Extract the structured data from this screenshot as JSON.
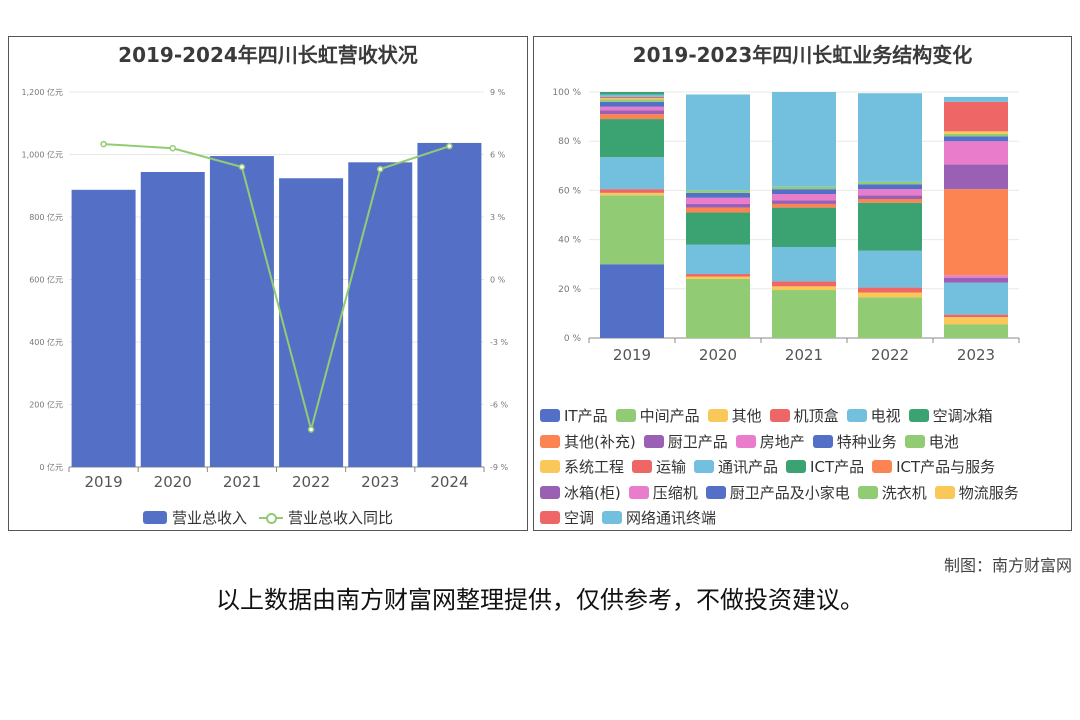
{
  "credit": "制图：南方财富网",
  "disclaimer": "以上数据由南方财富网整理提供，仅供参考，不做投资建议。",
  "chart_data": [
    {
      "type": "bar",
      "title": "2019-2024年四川长虹营收状况",
      "categories": [
        "2019",
        "2020",
        "2021",
        "2022",
        "2023",
        "2024"
      ],
      "series": [
        {
          "name": "营业总收入",
          "type": "bar",
          "axis": "left",
          "values": [
            887,
            944,
            995,
            924,
            975,
            1037
          ],
          "color": "#5470c6"
        },
        {
          "name": "营业总收入同比",
          "type": "line",
          "axis": "right",
          "values": [
            6.5,
            6.3,
            5.4,
            -7.2,
            5.3,
            6.4
          ],
          "color": "#91cc75"
        }
      ],
      "yleft": {
        "ylim": [
          0,
          1200
        ],
        "ticks": [
          "0 亿元",
          "200 亿元",
          "400 亿元",
          "600 亿元",
          "800 亿元",
          "1,000 亿元",
          "1,200 亿元"
        ]
      },
      "yright": {
        "ylim": [
          -9,
          9
        ],
        "ticks": [
          "-9 %",
          "-6 %",
          "-3 %",
          "0 %",
          "3 %",
          "6 %",
          "9 %"
        ]
      },
      "grid": true,
      "legend": "bottom"
    },
    {
      "type": "bar",
      "stacked": true,
      "title": "2019-2023年四川长虹业务结构变化",
      "categories": [
        "2019",
        "2020",
        "2021",
        "2022",
        "2023"
      ],
      "ylim": [
        0,
        100
      ],
      "yticks": [
        "0 %",
        "20 %",
        "40 %",
        "60 %",
        "80 %",
        "100 %"
      ],
      "legend": "bottom",
      "series": [
        {
          "name": "IT产品",
          "color": "#5470c6",
          "values": [
            30,
            0,
            0,
            0,
            0
          ]
        },
        {
          "name": "中间产品",
          "color": "#91cc75",
          "values": [
            28,
            0,
            0,
            0,
            0
          ]
        },
        {
          "name": "其他",
          "color": "#fac858",
          "values": [
            1,
            0,
            0,
            0,
            0
          ]
        },
        {
          "name": "机顶盒",
          "color": "#ee6666",
          "values": [
            1.5,
            0,
            0,
            0,
            0
          ]
        },
        {
          "name": "电视",
          "color": "#73c0de",
          "values": [
            13,
            0,
            0,
            0,
            0
          ]
        },
        {
          "name": "空调冰箱",
          "color": "#3ba272",
          "values": [
            15.5,
            0,
            0,
            0,
            0
          ]
        },
        {
          "name": "其他(补充)",
          "color": "#fc8452",
          "values": [
            2,
            0,
            0,
            0,
            0
          ]
        },
        {
          "name": "厨卫产品",
          "color": "#9a60b4",
          "values": [
            1.5,
            0,
            0,
            0,
            0
          ]
        },
        {
          "name": "房地产",
          "color": "#ea7ccc",
          "values": [
            1.5,
            0,
            0,
            0,
            0
          ]
        },
        {
          "name": "特种业务",
          "color": "#5470c6",
          "values": [
            2,
            0,
            0,
            0,
            0
          ]
        },
        {
          "name": "电池",
          "color": "#91cc75",
          "values": [
            1,
            24,
            19.5,
            16.5,
            5.5
          ]
        },
        {
          "name": "系统工程",
          "color": "#fac858",
          "values": [
            0.5,
            1,
            1.5,
            2,
            2
          ]
        },
        {
          "name": "运输",
          "color": "#ee6666",
          "values": [
            0.5,
            1,
            2,
            2,
            0
          ]
        },
        {
          "name": "通讯产品",
          "color": "#73c0de",
          "values": [
            1,
            12,
            14,
            15,
            0
          ]
        },
        {
          "name": "ICT产品",
          "color": "#3ba272",
          "values": [
            1,
            13,
            16,
            19.5,
            0
          ]
        },
        {
          "name": "ICT产品与服务",
          "color": "#fc8452",
          "values": [
            0,
            2,
            1.5,
            1.5,
            0
          ]
        },
        {
          "name": "冰箱(柜)",
          "color": "#9a60b4",
          "values": [
            0,
            1.5,
            1.5,
            1.5,
            0
          ]
        },
        {
          "name": "压缩机",
          "color": "#ea7ccc",
          "values": [
            0,
            2.5,
            2.5,
            2.5,
            0
          ]
        },
        {
          "name": "厨卫产品及小家电",
          "color": "#5470c6",
          "values": [
            0,
            2,
            2,
            2,
            0
          ]
        },
        {
          "name": "洗衣机",
          "color": "#91cc75",
          "values": [
            0,
            1,
            1,
            1,
            0
          ]
        },
        {
          "name": "物流服务",
          "color": "#fac858",
          "values": [
            0,
            0,
            0,
            0,
            1
          ]
        },
        {
          "name": "空调",
          "color": "#ee6666",
          "values": [
            0,
            0,
            0,
            0,
            1
          ]
        },
        {
          "name": "网络通讯终端",
          "color": "#73c0de",
          "values": [
            0,
            39,
            38.5,
            36,
            13
          ]
        },
        {
          "name": "ICT产品_b",
          "color": "#3ba272",
          "values": [
            0,
            0,
            0,
            0,
            0
          ]
        },
        {
          "name": "其他_b",
          "color": "#9a60b4",
          "values": [
            0,
            0,
            0,
            0,
            2
          ]
        },
        {
          "name": "压缩机_b",
          "color": "#ea7ccc",
          "values": [
            0,
            0,
            0,
            0,
            1
          ]
        },
        {
          "name": "ICT产品与服务_b",
          "color": "#fc8452",
          "values": [
            0,
            0,
            0,
            0,
            35
          ]
        },
        {
          "name": "冰箱(柜)_b",
          "color": "#9a60b4",
          "values": [
            0,
            0,
            0,
            0,
            10
          ]
        },
        {
          "name": "压缩机_c",
          "color": "#ea7ccc",
          "values": [
            0,
            0,
            0,
            0,
            9.5
          ]
        },
        {
          "name": "厨卫产品及小家电_b",
          "color": "#5470c6",
          "values": [
            0,
            0,
            0,
            0,
            2
          ]
        },
        {
          "name": "洗衣机_b",
          "color": "#91cc75",
          "values": [
            0,
            0,
            0,
            0,
            1
          ]
        },
        {
          "name": "物流服务_b",
          "color": "#fac858",
          "values": [
            0,
            0,
            0,
            0,
            1
          ]
        },
        {
          "name": "空调_b",
          "color": "#ee6666",
          "values": [
            0,
            0,
            0,
            0,
            12
          ]
        },
        {
          "name": "网络通讯终端_b",
          "color": "#73c0de",
          "values": [
            0,
            0,
            0,
            0,
            2
          ]
        }
      ],
      "legend_items": [
        [
          "IT产品",
          "中间产品",
          "其他",
          "机顶盒",
          "电视",
          "空调冰箱"
        ],
        [
          "其他(补充)",
          "厨卫产品",
          "房地产",
          "特种业务",
          "电池"
        ],
        [
          "系统工程",
          "运输",
          "通讯产品",
          "ICT产品",
          "ICT产品与服务"
        ],
        [
          "冰箱(柜)",
          "压缩机",
          "厨卫产品及小家电",
          "洗衣机",
          "物流服务"
        ],
        [
          "空调",
          "网络通讯终端"
        ]
      ],
      "legend_colors": [
        [
          "#5470c6",
          "#91cc75",
          "#fac858",
          "#ee6666",
          "#73c0de",
          "#3ba272"
        ],
        [
          "#fc8452",
          "#9a60b4",
          "#ea7ccc",
          "#5470c6",
          "#91cc75"
        ],
        [
          "#fac858",
          "#ee6666",
          "#73c0de",
          "#3ba272",
          "#fc8452"
        ],
        [
          "#9a60b4",
          "#ea7ccc",
          "#5470c6",
          "#91cc75",
          "#fac858"
        ],
        [
          "#ee6666",
          "#73c0de"
        ]
      ]
    }
  ],
  "legend1_items": [
    "营业总收入",
    "营业总收入同比"
  ]
}
